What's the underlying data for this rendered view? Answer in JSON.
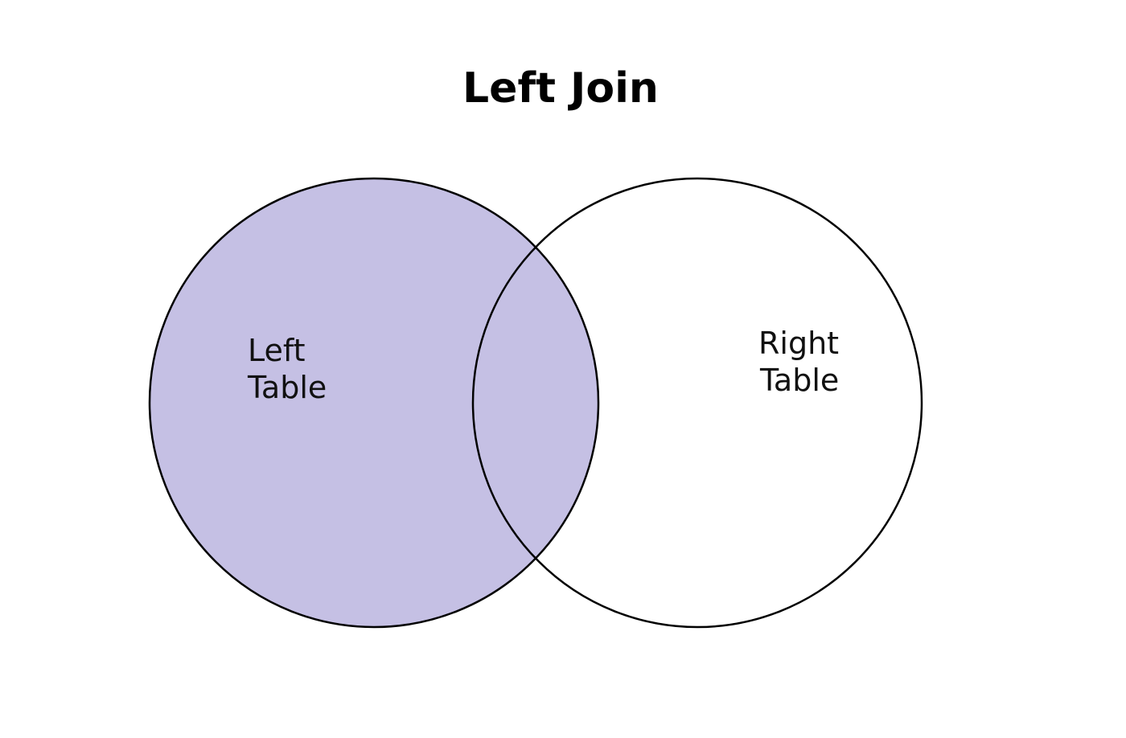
{
  "title": "Left Join",
  "colors": {
    "highlight_fill": "#c5c0e4",
    "outline": "#000000",
    "background": "#ffffff"
  },
  "sets": {
    "left": {
      "line1": "Left",
      "line2": "Table",
      "highlighted": true
    },
    "right": {
      "line1": "Right",
      "line2": "Table",
      "highlighted": false
    }
  }
}
